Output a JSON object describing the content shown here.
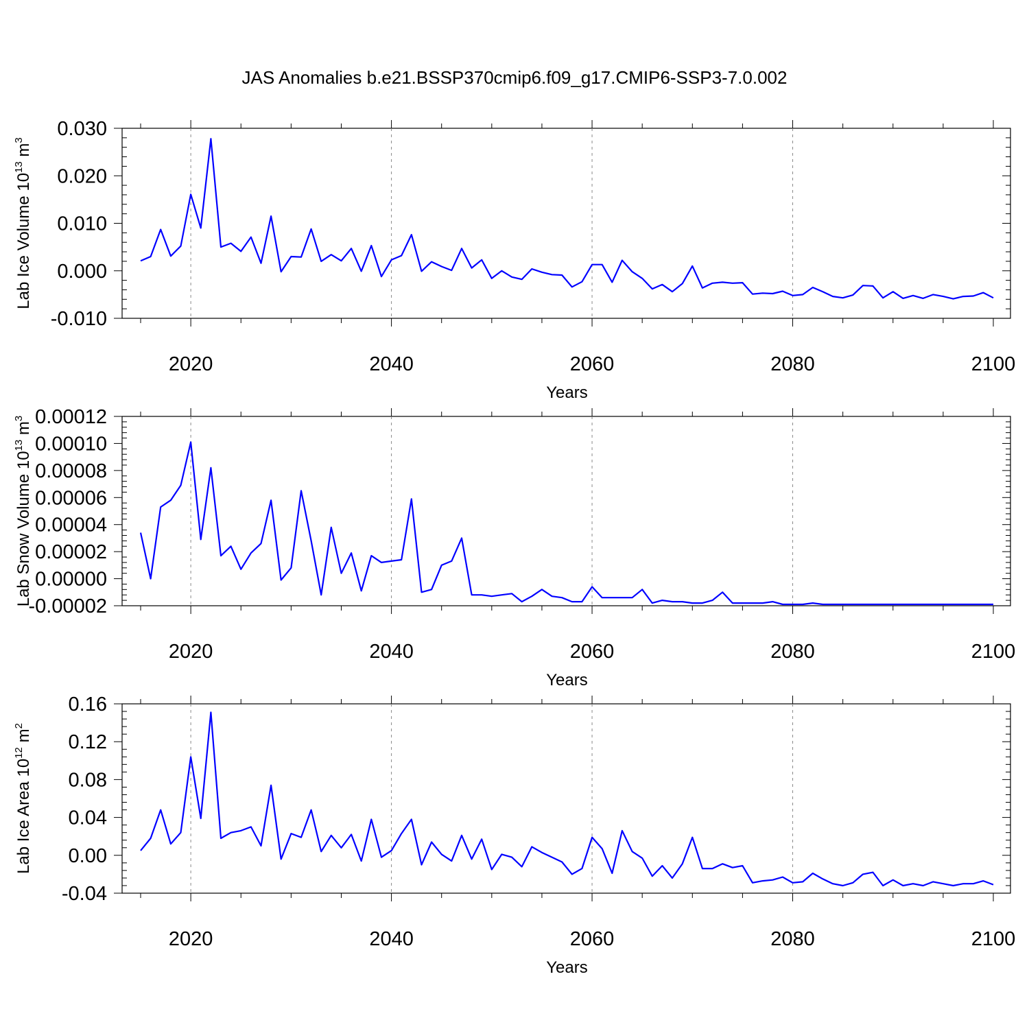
{
  "title": "JAS Anomalies b.e21.BSSP370cmip6.f09_g17.CMIP6-SSP3-7.0.002",
  "colors": {
    "line": "#0000ff",
    "axes": "#000000",
    "grid": "#888888"
  },
  "chart_data": [
    {
      "type": "line",
      "ylabel": {
        "main": "Lab Ice Volume 10",
        "sup": "13",
        "after": " m",
        "sup2": "3"
      },
      "xlabel": "Years",
      "xlim": [
        2015,
        2100
      ],
      "ylim": [
        -0.01,
        0.03
      ],
      "xticks": [
        2020,
        2040,
        2060,
        2080,
        2100
      ],
      "xtick_labels": [
        "2020",
        "2040",
        "2060",
        "2080",
        "2100"
      ],
      "yticks": [
        -0.01,
        0.0,
        0.01,
        0.02,
        0.03
      ],
      "ytick_labels": [
        "-0.010",
        "0.000",
        "0.010",
        "0.020",
        "0.030"
      ],
      "grid": "vertical dashed at major x ticks",
      "series": [
        {
          "x_start": 2015,
          "values": [
            0.0021,
            0.003,
            0.0087,
            0.0031,
            0.0052,
            0.0161,
            0.009,
            0.0278,
            0.005,
            0.0058,
            0.0041,
            0.0071,
            0.0016,
            0.0115,
            -0.0002,
            0.003,
            0.0029,
            0.0088,
            0.002,
            0.0034,
            0.0021,
            0.0047,
            -0.0001,
            0.0053,
            -0.0012,
            0.0023,
            0.0032,
            0.0076,
            -0.0001,
            0.0019,
            0.0009,
            0.0001,
            0.0047,
            0.0006,
            0.0023,
            -0.0016,
            0.0,
            -0.0013,
            -0.0018,
            0.0004,
            -0.0003,
            -0.0008,
            -0.0009,
            -0.0034,
            -0.0023,
            0.0013,
            0.0013,
            -0.0024,
            0.0022,
            -0.0002,
            -0.0016,
            -0.0038,
            -0.0029,
            -0.0044,
            -0.0027,
            0.001,
            -0.0036,
            -0.0026,
            -0.0024,
            -0.0026,
            -0.0025,
            -0.0049,
            -0.0047,
            -0.0048,
            -0.0043,
            -0.0052,
            -0.005,
            -0.0035,
            -0.0044,
            -0.0054,
            -0.0057,
            -0.0051,
            -0.0031,
            -0.0032,
            -0.0057,
            -0.0044,
            -0.0058,
            -0.0052,
            -0.0058,
            -0.005,
            -0.0054,
            -0.0059,
            -0.0054,
            -0.0053,
            -0.0046,
            -0.0057
          ]
        }
      ]
    },
    {
      "type": "line",
      "ylabel": {
        "main": "Lab Snow Volume 10",
        "sup": "13",
        "after": " m",
        "sup2": "3"
      },
      "xlabel": "Years",
      "xlim": [
        2015,
        2100
      ],
      "ylim": [
        -2e-05,
        0.00012
      ],
      "xticks": [
        2020,
        2040,
        2060,
        2080,
        2100
      ],
      "xtick_labels": [
        "2020",
        "2040",
        "2060",
        "2080",
        "2100"
      ],
      "yticks": [
        -2e-05,
        0.0,
        2e-05,
        4e-05,
        6e-05,
        8e-05,
        0.0001,
        0.00012
      ],
      "ytick_labels": [
        "-0.00002",
        "0.00000",
        "0.00002",
        "0.00004",
        "0.00006",
        "0.00008",
        "0.00010",
        "0.00012"
      ],
      "grid": "vertical dashed at major x ticks",
      "series": [
        {
          "x_start": 2015,
          "values": [
            3.4e-05,
            0.0,
            5.3e-05,
            5.8e-05,
            6.9e-05,
            0.000101,
            2.9e-05,
            8.2e-05,
            1.7e-05,
            2.4e-05,
            7e-06,
            1.9e-05,
            2.6e-05,
            5.8e-05,
            -1e-06,
            8e-06,
            6.5e-05,
            2.8e-05,
            -1.2e-05,
            3.8e-05,
            4e-06,
            1.9e-05,
            -9e-06,
            1.7e-05,
            1.2e-05,
            1.3e-05,
            1.4e-05,
            5.9e-05,
            -1e-05,
            -8e-06,
            1e-05,
            1.3e-05,
            3e-05,
            -1.2e-05,
            -1.2e-05,
            -1.3e-05,
            -1.2e-05,
            -1.1e-05,
            -1.7e-05,
            -1.3e-05,
            -8e-06,
            -1.3e-05,
            -1.4e-05,
            -1.7e-05,
            -1.7e-05,
            -6e-06,
            -1.4e-05,
            -1.4e-05,
            -1.4e-05,
            -1.4e-05,
            -8e-06,
            -1.8e-05,
            -1.6e-05,
            -1.7e-05,
            -1.7e-05,
            -1.8e-05,
            -1.8e-05,
            -1.6e-05,
            -1e-05,
            -1.8e-05,
            -1.8e-05,
            -1.8e-05,
            -1.8e-05,
            -1.7e-05,
            -1.9e-05,
            -1.9e-05,
            -1.9e-05,
            -1.8e-05,
            -1.9e-05,
            -1.9e-05,
            -1.9e-05,
            -1.9e-05,
            -1.9e-05,
            -1.9e-05,
            -1.9e-05,
            -1.9e-05,
            -1.9e-05,
            -1.9e-05,
            -1.9e-05,
            -1.9e-05,
            -1.9e-05,
            -1.9e-05,
            -1.9e-05,
            -1.9e-05,
            -1.9e-05,
            -1.9e-05
          ]
        }
      ]
    },
    {
      "type": "line",
      "ylabel": {
        "main": "Lab Ice Area 10",
        "sup": "12",
        "after": " m",
        "sup2": "2"
      },
      "xlabel": "Years",
      "xlim": [
        2015,
        2100
      ],
      "ylim": [
        -0.04,
        0.16
      ],
      "xticks": [
        2020,
        2040,
        2060,
        2080,
        2100
      ],
      "xtick_labels": [
        "2020",
        "2040",
        "2060",
        "2080",
        "2100"
      ],
      "yticks": [
        -0.04,
        0.0,
        0.04,
        0.08,
        0.12,
        0.16
      ],
      "ytick_labels": [
        "-0.04",
        "0.00",
        "0.04",
        "0.08",
        "0.12",
        "0.16"
      ],
      "grid": "vertical dashed at major x ticks",
      "series": [
        {
          "x_start": 2015,
          "values": [
            0.005,
            0.018,
            0.048,
            0.012,
            0.024,
            0.104,
            0.039,
            0.151,
            0.018,
            0.024,
            0.026,
            0.03,
            0.01,
            0.074,
            -0.004,
            0.023,
            0.019,
            0.048,
            0.004,
            0.021,
            0.008,
            0.022,
            -0.006,
            0.038,
            -0.002,
            0.005,
            0.023,
            0.038,
            -0.01,
            0.014,
            0.001,
            -0.006,
            0.021,
            -0.004,
            0.017,
            -0.015,
            0.001,
            -0.002,
            -0.012,
            0.009,
            0.003,
            -0.002,
            -0.007,
            -0.02,
            -0.014,
            0.019,
            0.007,
            -0.019,
            0.026,
            0.004,
            -0.003,
            -0.022,
            -0.011,
            -0.024,
            -0.009,
            0.019,
            -0.014,
            -0.014,
            -0.009,
            -0.013,
            -0.011,
            -0.029,
            -0.027,
            -0.026,
            -0.023,
            -0.029,
            -0.028,
            -0.019,
            -0.025,
            -0.03,
            -0.032,
            -0.029,
            -0.02,
            -0.018,
            -0.032,
            -0.026,
            -0.032,
            -0.03,
            -0.032,
            -0.028,
            -0.03,
            -0.032,
            -0.03,
            -0.03,
            -0.027,
            -0.031
          ]
        }
      ]
    }
  ]
}
